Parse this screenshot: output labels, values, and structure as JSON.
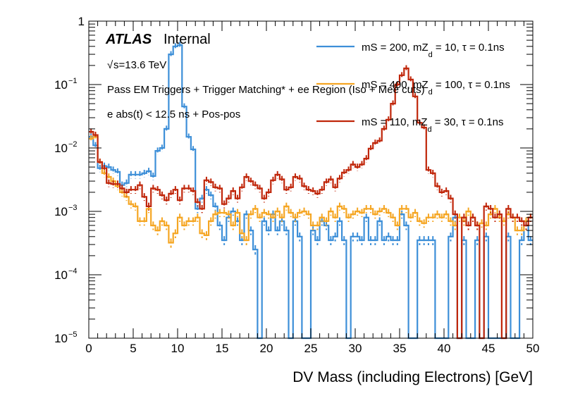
{
  "chart_data": {
    "type": "line",
    "style": "step-histogram",
    "title": "",
    "xlabel": "DV Mass (including Electrons) [GeV]",
    "ylabel": "",
    "xlim": [
      0,
      50
    ],
    "ylim": [
      1e-05,
      1
    ],
    "yscale": "log",
    "x_ticks": [
      "0",
      "5",
      "10",
      "15",
      "20",
      "25",
      "30",
      "35",
      "40",
      "45",
      "50"
    ],
    "y_ticks": [
      {
        "base": "10",
        "exp": "−5",
        "value": 1e-05
      },
      {
        "base": "10",
        "exp": "−4",
        "value": 0.0001
      },
      {
        "base": "10",
        "exp": "−3",
        "value": 0.001
      },
      {
        "base": "10",
        "exp": "−2",
        "value": 0.01
      },
      {
        "base": "10",
        "exp": "−1",
        "value": 0.1
      },
      {
        "base": "1",
        "exp": "",
        "value": 1
      }
    ],
    "grid": false,
    "legend_position": "top-right",
    "bin_width": 0.5,
    "annotations": {
      "atlas_label": "ATLAS",
      "atlas_status": "Internal",
      "energy_sqrt": "√",
      "energy": "s=13.6 TeV",
      "selection_1": "Pass EM Triggers + Trigger Matching* + ee Region (Iso + Mee cuts)",
      "selection_2": "e abs(t) < 12.5 ns + Pos-pos"
    },
    "series": [
      {
        "name": "mS = 200, mZd = 10, τ = 0.1ns",
        "legend_main": "mS = 200, mZ",
        "legend_sub": "d",
        "legend_rest": " = 10, τ = 0.1ns",
        "color": "#3d8fd8",
        "values": [
          0.015,
          0.011,
          0.0048,
          0.0052,
          0.005,
          0.0045,
          0.0042,
          0.0026,
          0.0028,
          0.0038,
          0.0038,
          0.0038,
          0.004,
          0.0043,
          0.0036,
          0.009,
          0.01,
          0.02,
          0.3,
          0.4,
          0.42,
          0.045,
          0.015,
          0.0095,
          0.0011,
          0.0016,
          0.0022,
          0.0018,
          0.0012,
          0.0006,
          0.00035,
          0.0008,
          0.001,
          0.0007,
          0.00035,
          0.0009,
          0.0005,
          0.00025,
          1e-05,
          0.0007,
          0.0005,
          0.0009,
          0.0005,
          0.0007,
          0.0005,
          1e-05,
          0.0007,
          0.0004,
          1e-05,
          1e-05,
          0.0005,
          0.00035,
          0.0007,
          0.0006,
          0.00035,
          0.0004,
          0.0007,
          0.00035,
          1e-05,
          0.0004,
          0.0004,
          0.00035,
          0.0008,
          0.00035,
          0.00035,
          0.0007,
          0.00035,
          0.0004,
          0.00035,
          0.00035,
          0.0009,
          0.0006,
          1e-05,
          1e-05,
          0.00035,
          0.00035,
          0.00035,
          0.00035,
          1e-05,
          1e-05,
          1e-05,
          0.0004,
          0.0008,
          1e-05,
          0.00035,
          1e-05,
          1e-05,
          0.00035,
          1e-05,
          0.0004,
          1e-05,
          1e-05,
          1e-05,
          1e-05,
          0.0004,
          1e-05,
          1e-05,
          0.00035,
          0.0006,
          0.00035
        ]
      },
      {
        "name": "mS = 400, mZd = 100, τ = 0.1ns",
        "legend_main": "mS = 400, mZ",
        "legend_sub": "d",
        "legend_rest": " = 100, τ = 0.1ns",
        "color": "#f5a623",
        "values": [
          0.014,
          0.015,
          0.006,
          0.004,
          0.0035,
          0.003,
          0.0025,
          0.002,
          0.0017,
          0.0013,
          0.0012,
          0.0007,
          0.0007,
          0.0011,
          0.0006,
          0.0005,
          0.0007,
          0.0006,
          0.00032,
          0.00045,
          0.0008,
          0.0006,
          0.0007,
          0.0007,
          0.0008,
          0.00045,
          0.00042,
          0.0007,
          0.0009,
          0.00095,
          0.00095,
          0.0009,
          0.0006,
          0.00095,
          0.00045,
          0.00035,
          0.0009,
          0.0011,
          0.0008,
          0.00095,
          0.0009,
          0.0008,
          0.001,
          0.0008,
          0.0012,
          0.00095,
          0.0008,
          0.00095,
          0.001,
          0.0009,
          0.0006,
          0.0006,
          0.0008,
          0.0007,
          0.001,
          0.0008,
          0.0012,
          0.0011,
          0.0008,
          0.0009,
          0.001,
          0.00095,
          0.0011,
          0.0011,
          0.0009,
          0.001,
          0.0011,
          0.00095,
          0.0008,
          0.0006,
          0.0011,
          0.0011,
          0.0008,
          0.00095,
          0.0007,
          0.00065,
          0.0008,
          0.0008,
          0.0009,
          0.0008,
          0.0009,
          0.0007,
          0.0006,
          0.0008,
          0.0007,
          0.001,
          0.0008,
          0.0006,
          0.00065,
          0.0006,
          0.0009,
          0.0011,
          0.0008,
          0.0007,
          0.0009,
          0.0008,
          0.0005,
          0.0005,
          0.0007,
          0.0008
        ]
      },
      {
        "name": "mS = 110, mZd = 30, τ = 0.1ns",
        "legend_main": "mS = 110, mZ",
        "legend_sub": "d",
        "legend_rest": " = 30, τ = 0.1ns",
        "color": "#c0260a",
        "values": [
          0.018,
          0.016,
          0.006,
          0.0048,
          0.0028,
          0.0027,
          0.0027,
          0.0023,
          0.002,
          0.0022,
          0.0022,
          0.0026,
          0.0017,
          0.0012,
          0.0023,
          0.0022,
          0.0018,
          0.0015,
          0.0019,
          0.0022,
          0.0015,
          0.0023,
          0.0023,
          0.0021,
          0.0014,
          0.0011,
          0.0031,
          0.0029,
          0.0024,
          0.0023,
          0.0013,
          0.0016,
          0.0021,
          0.0016,
          0.0024,
          0.0035,
          0.003,
          0.0026,
          0.0023,
          0.0016,
          0.002,
          0.0031,
          0.0038,
          0.0032,
          0.0022,
          0.0024,
          0.0035,
          0.0033,
          0.0025,
          0.0022,
          0.0021,
          0.0019,
          0.0022,
          0.0029,
          0.0032,
          0.0024,
          0.0033,
          0.0041,
          0.0045,
          0.0055,
          0.005,
          0.0055,
          0.0068,
          0.0098,
          0.012,
          0.013,
          0.02,
          0.028,
          0.05,
          0.1,
          0.14,
          0.18,
          0.12,
          0.065,
          0.025,
          0.021,
          0.0045,
          0.004,
          0.0025,
          0.002,
          0.0021,
          0.0016,
          0.0009,
          1e-05,
          0.0008,
          0.0006,
          0.0008,
          0.0006,
          1e-05,
          0.0012,
          0.0011,
          0.0008,
          0.0009,
          1e-05,
          0.0011,
          0.0008,
          0.0008,
          0.0007,
          0.0006,
          0.0008
        ]
      }
    ]
  }
}
